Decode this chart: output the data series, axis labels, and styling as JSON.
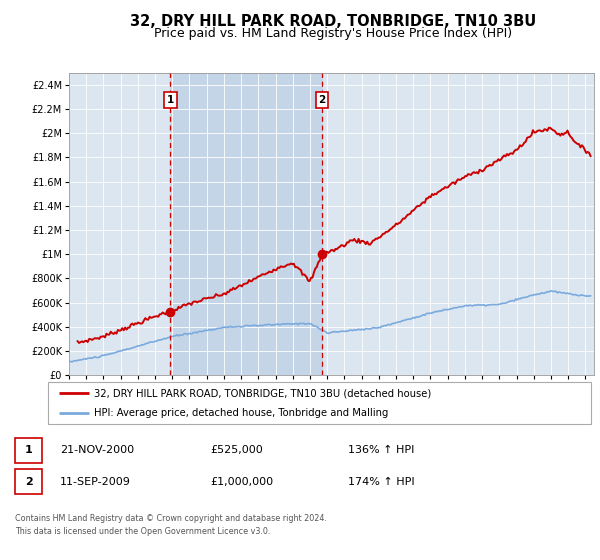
{
  "title": "32, DRY HILL PARK ROAD, TONBRIDGE, TN10 3BU",
  "subtitle": "Price paid vs. HM Land Registry's House Price Index (HPI)",
  "legend_label_red": "32, DRY HILL PARK ROAD, TONBRIDGE, TN10 3BU (detached house)",
  "legend_label_blue": "HPI: Average price, detached house, Tonbridge and Malling",
  "annotation1_num": "1",
  "annotation1_date": "21-NOV-2000",
  "annotation1_price": "£525,000",
  "annotation1_hpi": "136% ↑ HPI",
  "annotation2_num": "2",
  "annotation2_date": "11-SEP-2009",
  "annotation2_price": "£1,000,000",
  "annotation2_hpi": "174% ↑ HPI",
  "footer": "Contains HM Land Registry data © Crown copyright and database right 2024.\nThis data is licensed under the Open Government Licence v3.0.",
  "red_color": "#cc0000",
  "blue_color": "#7aaadd",
  "bg_plot": "#dce6f1",
  "bg_shaded": "#c5d5e8",
  "ylim": [
    0,
    2500000
  ],
  "yticks": [
    0,
    200000,
    400000,
    600000,
    800000,
    1000000,
    1200000,
    1400000,
    1600000,
    1800000,
    2000000,
    2200000,
    2400000
  ],
  "xlim_start": 1995.0,
  "xlim_end": 2025.5,
  "sale1_x": 2000.89,
  "sale1_y": 525000,
  "sale2_x": 2009.7,
  "sale2_y": 1000000,
  "vline1_x": 2000.89,
  "vline2_x": 2009.7,
  "title_fontsize": 10.5,
  "subtitle_fontsize": 9.0
}
